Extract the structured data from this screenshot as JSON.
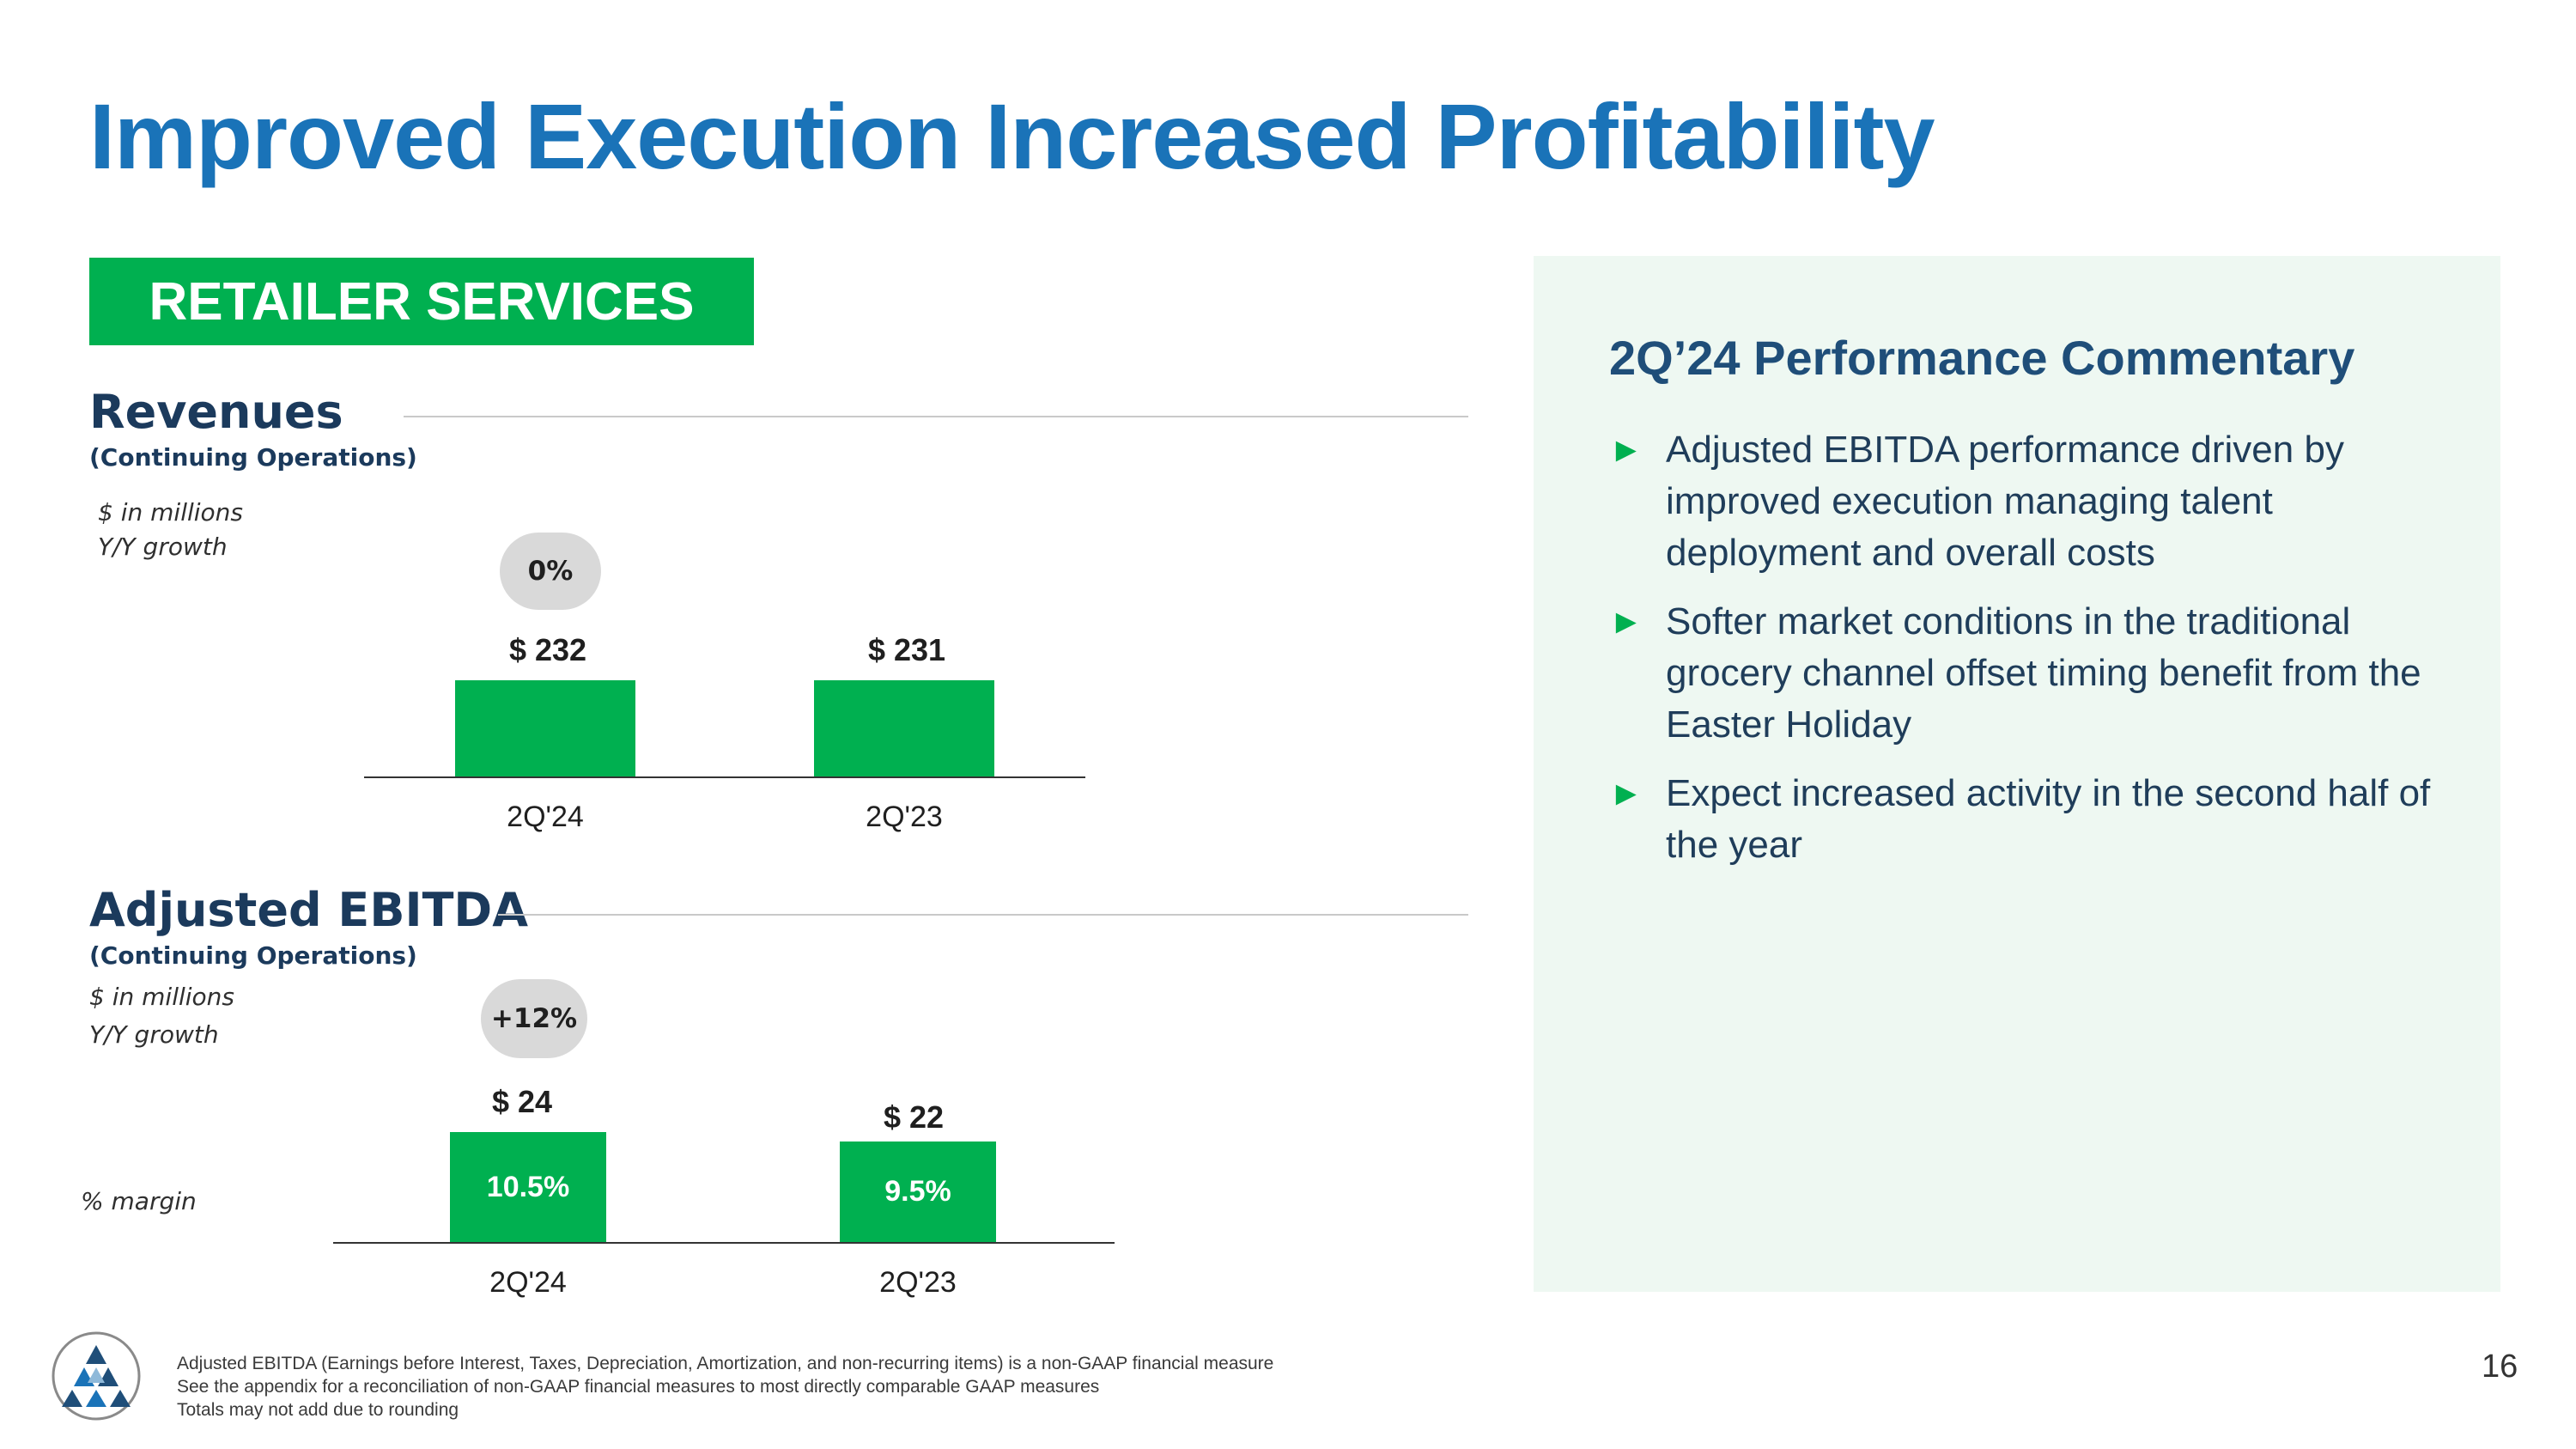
{
  "title": "Improved Execution Increased Profitability",
  "section_label": "RETAILER SERVICES",
  "revenues": {
    "heading": "Revenues",
    "subheading": "(Continuing Operations)",
    "note_units": "$ in millions",
    "note_growth": "Y/Y growth",
    "growth": "0%",
    "bars": [
      {
        "category": "2Q'24",
        "label": "$ 232",
        "value": 232
      },
      {
        "category": "2Q'23",
        "label": "$ 231",
        "value": 231
      }
    ]
  },
  "ebitda": {
    "heading": "Adjusted EBITDA",
    "subheading": "(Continuing Operations)",
    "note_units": "$ in millions",
    "note_growth": "Y/Y growth",
    "note_margin": "% margin",
    "growth": "+12%",
    "bars": [
      {
        "category": "2Q'24",
        "label": "$ 24",
        "value": 24,
        "margin": "10.5%"
      },
      {
        "category": "2Q'23",
        "label": "$ 22",
        "value": 22,
        "margin": "9.5%"
      }
    ]
  },
  "commentary": {
    "title": "2Q’24 Performance Commentary",
    "bullet_mark": "►",
    "bullets": [
      "Adjusted EBITDA performance driven by improved execution managing talent deployment and overall costs",
      "Softer market conditions in the traditional grocery channel offset timing benefit from the Easter Holiday",
      "Expect increased activity in the second half of the year"
    ]
  },
  "footnotes": [
    "Adjusted EBITDA (Earnings before Interest, Taxes, Depreciation, Amortization, and non-recurring items) is a non-GAAP financial measure",
    "See the appendix for a reconciliation of non-GAAP financial measures to most directly comparable GAAP measures",
    "Totals may not add due to rounding"
  ],
  "page_number": "16",
  "colors": {
    "title_blue": "#1a73b8",
    "brand_green": "#00b050",
    "navy": "#1b3a5c",
    "panel_bg": "#eef8f2"
  },
  "chart_data": [
    {
      "type": "bar",
      "title": "Revenues (Continuing Operations)",
      "ylabel": "$ in millions",
      "categories": [
        "2Q'24",
        "2Q'23"
      ],
      "values": [
        232,
        231
      ],
      "yoy_growth": "0%"
    },
    {
      "type": "bar",
      "title": "Adjusted EBITDA (Continuing Operations)",
      "ylabel": "$ in millions",
      "categories": [
        "2Q'24",
        "2Q'23"
      ],
      "values": [
        24,
        22
      ],
      "margins": [
        "10.5%",
        "9.5%"
      ],
      "yoy_growth": "+12%"
    }
  ]
}
